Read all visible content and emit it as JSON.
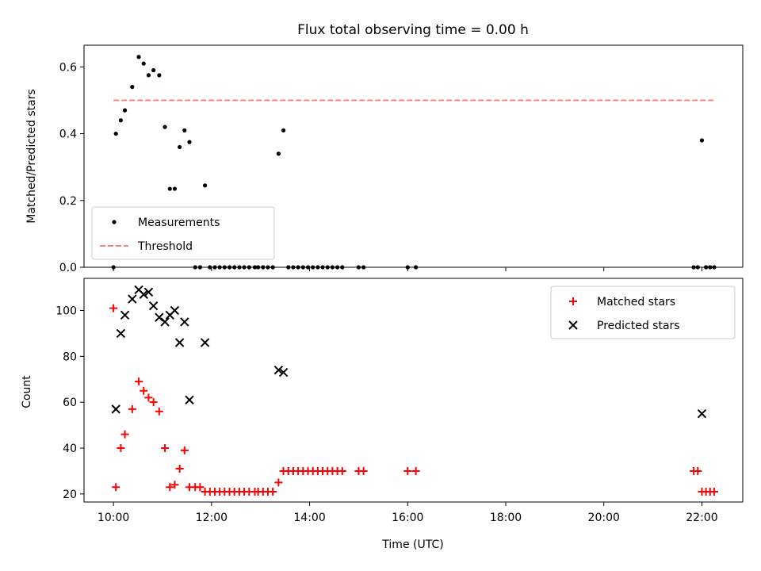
{
  "chart_data": [
    {
      "type": "scatter",
      "title": "Flux total observing time = 0.00 h",
      "xlabel": "",
      "ylabel": "Matched/Predicted stars",
      "xlim": [
        "09:24",
        "22:50"
      ],
      "ylim": [
        0,
        0.665
      ],
      "yticks": [
        "0.0",
        "0.2",
        "0.4",
        "0.6"
      ],
      "legend": {
        "placement": "lower-left",
        "entries": [
          "Measurements",
          "Threshold"
        ]
      },
      "series": [
        {
          "name": "Measurements",
          "color": "#000000",
          "marker": "dot",
          "points": [
            [
              "10:00",
              0.0
            ],
            [
              "10:03",
              0.4
            ],
            [
              "10:09",
              0.44
            ],
            [
              "10:14",
              0.47
            ],
            [
              "10:23",
              0.54
            ],
            [
              "10:31",
              0.63
            ],
            [
              "10:37",
              0.61
            ],
            [
              "10:43",
              0.575
            ],
            [
              "10:49",
              0.59
            ],
            [
              "10:56",
              0.575
            ],
            [
              "11:03",
              0.42
            ],
            [
              "11:09",
              0.235
            ],
            [
              "11:15",
              0.235
            ],
            [
              "11:21",
              0.36
            ],
            [
              "11:27",
              0.41
            ],
            [
              "11:33",
              0.375
            ],
            [
              "11:40",
              0.0
            ],
            [
              "11:46",
              0.0
            ],
            [
              "11:52",
              0.245
            ],
            [
              "11:58",
              0.0
            ],
            [
              "12:04",
              0.0
            ],
            [
              "12:10",
              0.0
            ],
            [
              "12:16",
              0.0
            ],
            [
              "12:22",
              0.0
            ],
            [
              "12:28",
              0.0
            ],
            [
              "12:34",
              0.0
            ],
            [
              "12:40",
              0.0
            ],
            [
              "12:46",
              0.0
            ],
            [
              "12:53",
              0.0
            ],
            [
              "12:57",
              0.0
            ],
            [
              "13:03",
              0.0
            ],
            [
              "13:09",
              0.0
            ],
            [
              "13:15",
              0.0
            ],
            [
              "13:22",
              0.34
            ],
            [
              "13:28",
              0.41
            ],
            [
              "13:34",
              0.0
            ],
            [
              "13:40",
              0.0
            ],
            [
              "13:46",
              0.0
            ],
            [
              "13:52",
              0.0
            ],
            [
              "13:58",
              0.0
            ],
            [
              "14:04",
              0.0
            ],
            [
              "14:10",
              0.0
            ],
            [
              "14:16",
              0.0
            ],
            [
              "14:22",
              0.0
            ],
            [
              "14:28",
              0.0
            ],
            [
              "14:34",
              0.0
            ],
            [
              "14:40",
              0.0
            ],
            [
              "15:00",
              0.0
            ],
            [
              "15:06",
              0.0
            ],
            [
              "16:00",
              0.0
            ],
            [
              "16:10",
              0.0
            ],
            [
              "21:50",
              0.0
            ],
            [
              "21:55",
              0.0
            ],
            [
              "22:00",
              0.38
            ],
            [
              "22:05",
              0.0
            ],
            [
              "22:10",
              0.0
            ],
            [
              "22:15",
              0.0
            ]
          ]
        },
        {
          "name": "Threshold",
          "color": "#ff7f7f",
          "style": "dashed",
          "points": [
            [
              "10:00",
              0.5
            ],
            [
              "22:15",
              0.5
            ]
          ]
        }
      ]
    },
    {
      "type": "scatter",
      "title": "",
      "xlabel": "Time (UTC)",
      "ylabel": "Count",
      "xlim": [
        "09:24",
        "22:50"
      ],
      "ylim": [
        16.5,
        114
      ],
      "yticks": [
        "20",
        "40",
        "60",
        "80",
        "100"
      ],
      "xticks": [
        "10:00",
        "12:00",
        "14:00",
        "16:00",
        "18:00",
        "20:00",
        "22:00"
      ],
      "legend": {
        "placement": "upper-right",
        "entries": [
          "Matched stars",
          "Predicted stars"
        ]
      },
      "series": [
        {
          "name": "Matched stars",
          "color": "#ff0000",
          "marker": "plus",
          "points": [
            [
              "10:00",
              101
            ],
            [
              "10:03",
              23
            ],
            [
              "10:09",
              40
            ],
            [
              "10:14",
              46
            ],
            [
              "10:23",
              57
            ],
            [
              "10:31",
              69
            ],
            [
              "10:37",
              65
            ],
            [
              "10:43",
              62
            ],
            [
              "10:49",
              60
            ],
            [
              "10:56",
              56
            ],
            [
              "11:03",
              40
            ],
            [
              "11:09",
              23
            ],
            [
              "11:15",
              24
            ],
            [
              "11:21",
              31
            ],
            [
              "11:27",
              39
            ],
            [
              "11:33",
              23
            ],
            [
              "11:40",
              23
            ],
            [
              "11:46",
              23
            ],
            [
              "11:52",
              21
            ],
            [
              "11:58",
              21
            ],
            [
              "12:04",
              21
            ],
            [
              "12:10",
              21
            ],
            [
              "12:16",
              21
            ],
            [
              "12:22",
              21
            ],
            [
              "12:28",
              21
            ],
            [
              "12:34",
              21
            ],
            [
              "12:40",
              21
            ],
            [
              "12:46",
              21
            ],
            [
              "12:53",
              21
            ],
            [
              "12:57",
              21
            ],
            [
              "13:03",
              21
            ],
            [
              "13:09",
              21
            ],
            [
              "13:15",
              21
            ],
            [
              "13:22",
              25
            ],
            [
              "13:28",
              30
            ],
            [
              "13:34",
              30
            ],
            [
              "13:40",
              30
            ],
            [
              "13:46",
              30
            ],
            [
              "13:52",
              30
            ],
            [
              "13:58",
              30
            ],
            [
              "14:04",
              30
            ],
            [
              "14:10",
              30
            ],
            [
              "14:16",
              30
            ],
            [
              "14:22",
              30
            ],
            [
              "14:28",
              30
            ],
            [
              "14:34",
              30
            ],
            [
              "14:40",
              30
            ],
            [
              "15:00",
              30
            ],
            [
              "15:06",
              30
            ],
            [
              "16:00",
              30
            ],
            [
              "16:10",
              30
            ],
            [
              "21:50",
              30
            ],
            [
              "21:55",
              30
            ],
            [
              "22:00",
              21
            ],
            [
              "22:05",
              21
            ],
            [
              "22:10",
              21
            ],
            [
              "22:15",
              21
            ]
          ]
        },
        {
          "name": "Predicted stars",
          "color": "#000000",
          "marker": "x",
          "points": [
            [
              "10:03",
              57
            ],
            [
              "10:09",
              90
            ],
            [
              "10:14",
              98
            ],
            [
              "10:23",
              105
            ],
            [
              "10:31",
              109
            ],
            [
              "10:37",
              107
            ],
            [
              "10:43",
              108
            ],
            [
              "10:49",
              102
            ],
            [
              "10:56",
              97
            ],
            [
              "11:03",
              95
            ],
            [
              "11:09",
              98
            ],
            [
              "11:15",
              100
            ],
            [
              "11:21",
              86
            ],
            [
              "11:27",
              95
            ],
            [
              "11:33",
              61
            ],
            [
              "11:52",
              86
            ],
            [
              "13:22",
              74
            ],
            [
              "13:28",
              73
            ],
            [
              "22:00",
              55
            ]
          ]
        }
      ]
    }
  ]
}
